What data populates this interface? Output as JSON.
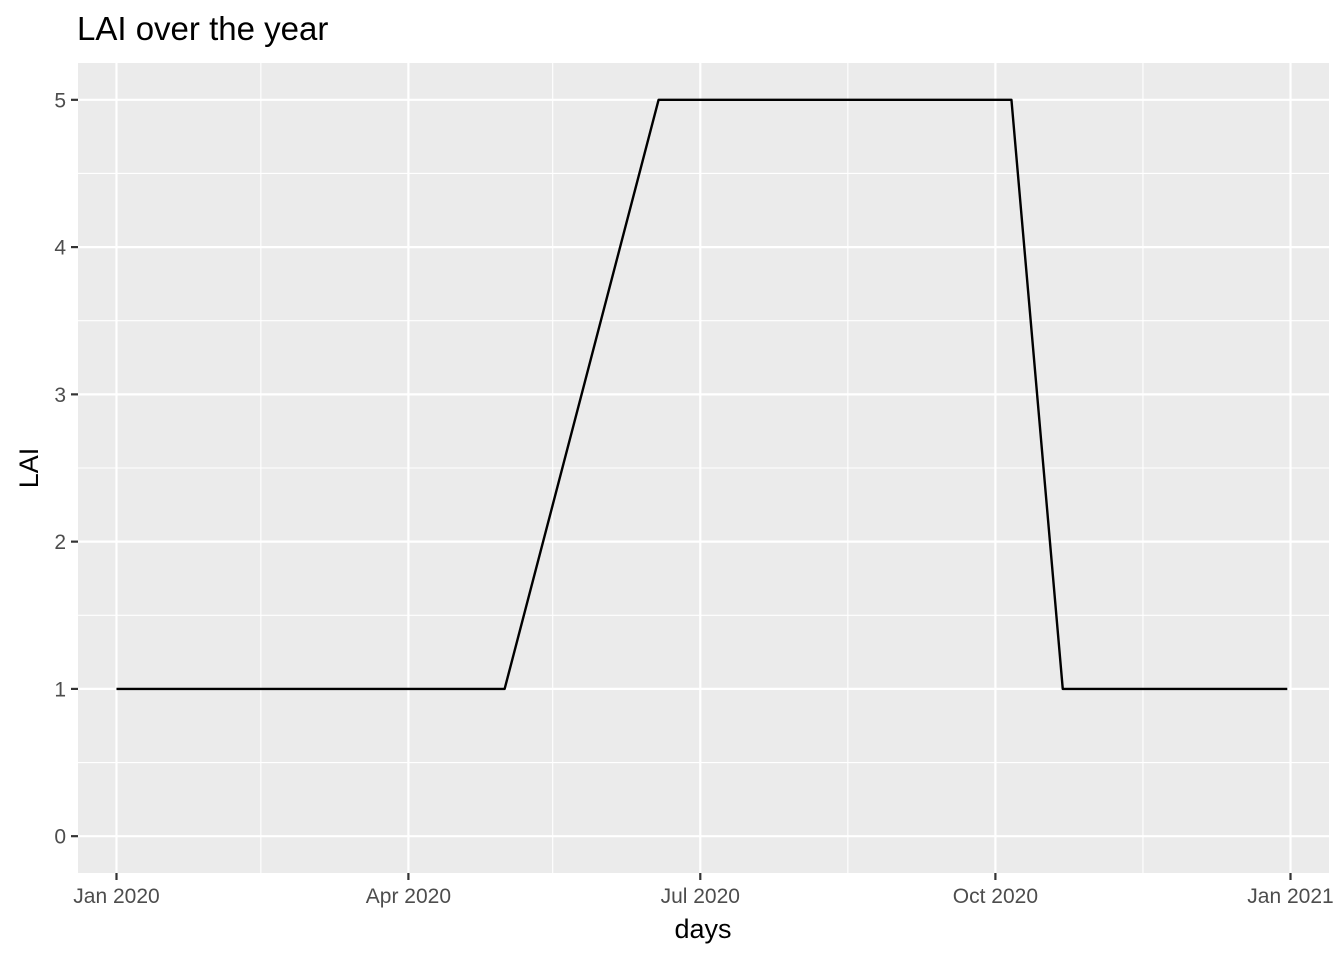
{
  "chart_data": {
    "type": "line",
    "title": "LAI over the year",
    "xlabel": "days",
    "ylabel": "LAI",
    "x_axis": {
      "scale": "date",
      "range": [
        "2019-12-20",
        "2021-01-13"
      ],
      "ticks": [
        {
          "value": "2020-01-01",
          "label": "Jan 2020"
        },
        {
          "value": "2020-04-01",
          "label": "Apr 2020"
        },
        {
          "value": "2020-07-01",
          "label": "Jul 2020"
        },
        {
          "value": "2020-10-01",
          "label": "Oct 2020"
        },
        {
          "value": "2021-01-01",
          "label": "Jan 2021"
        }
      ],
      "minor_ticks": [
        "2020-02-15",
        "2020-05-16",
        "2020-08-16",
        "2020-11-16"
      ]
    },
    "y_axis": {
      "range": [
        -0.25,
        5.25
      ],
      "ticks": [
        {
          "value": 0,
          "label": "0"
        },
        {
          "value": 1,
          "label": "1"
        },
        {
          "value": 2,
          "label": "2"
        },
        {
          "value": 3,
          "label": "3"
        },
        {
          "value": 4,
          "label": "4"
        },
        {
          "value": 5,
          "label": "5"
        }
      ],
      "minor_ticks": [
        0.5,
        1.5,
        2.5,
        3.5,
        4.5
      ]
    },
    "grid": true,
    "panel_color": "#ebebeb",
    "grid_color": "#ffffff",
    "series": [
      {
        "color": "#000000",
        "points": [
          {
            "x": "2020-01-01",
            "y": 1
          },
          {
            "x": "2020-05-01",
            "y": 1
          },
          {
            "x": "2020-06-18",
            "y": 5
          },
          {
            "x": "2020-10-06",
            "y": 5
          },
          {
            "x": "2020-10-22",
            "y": 1
          },
          {
            "x": "2020-12-31",
            "y": 1
          }
        ]
      }
    ]
  }
}
